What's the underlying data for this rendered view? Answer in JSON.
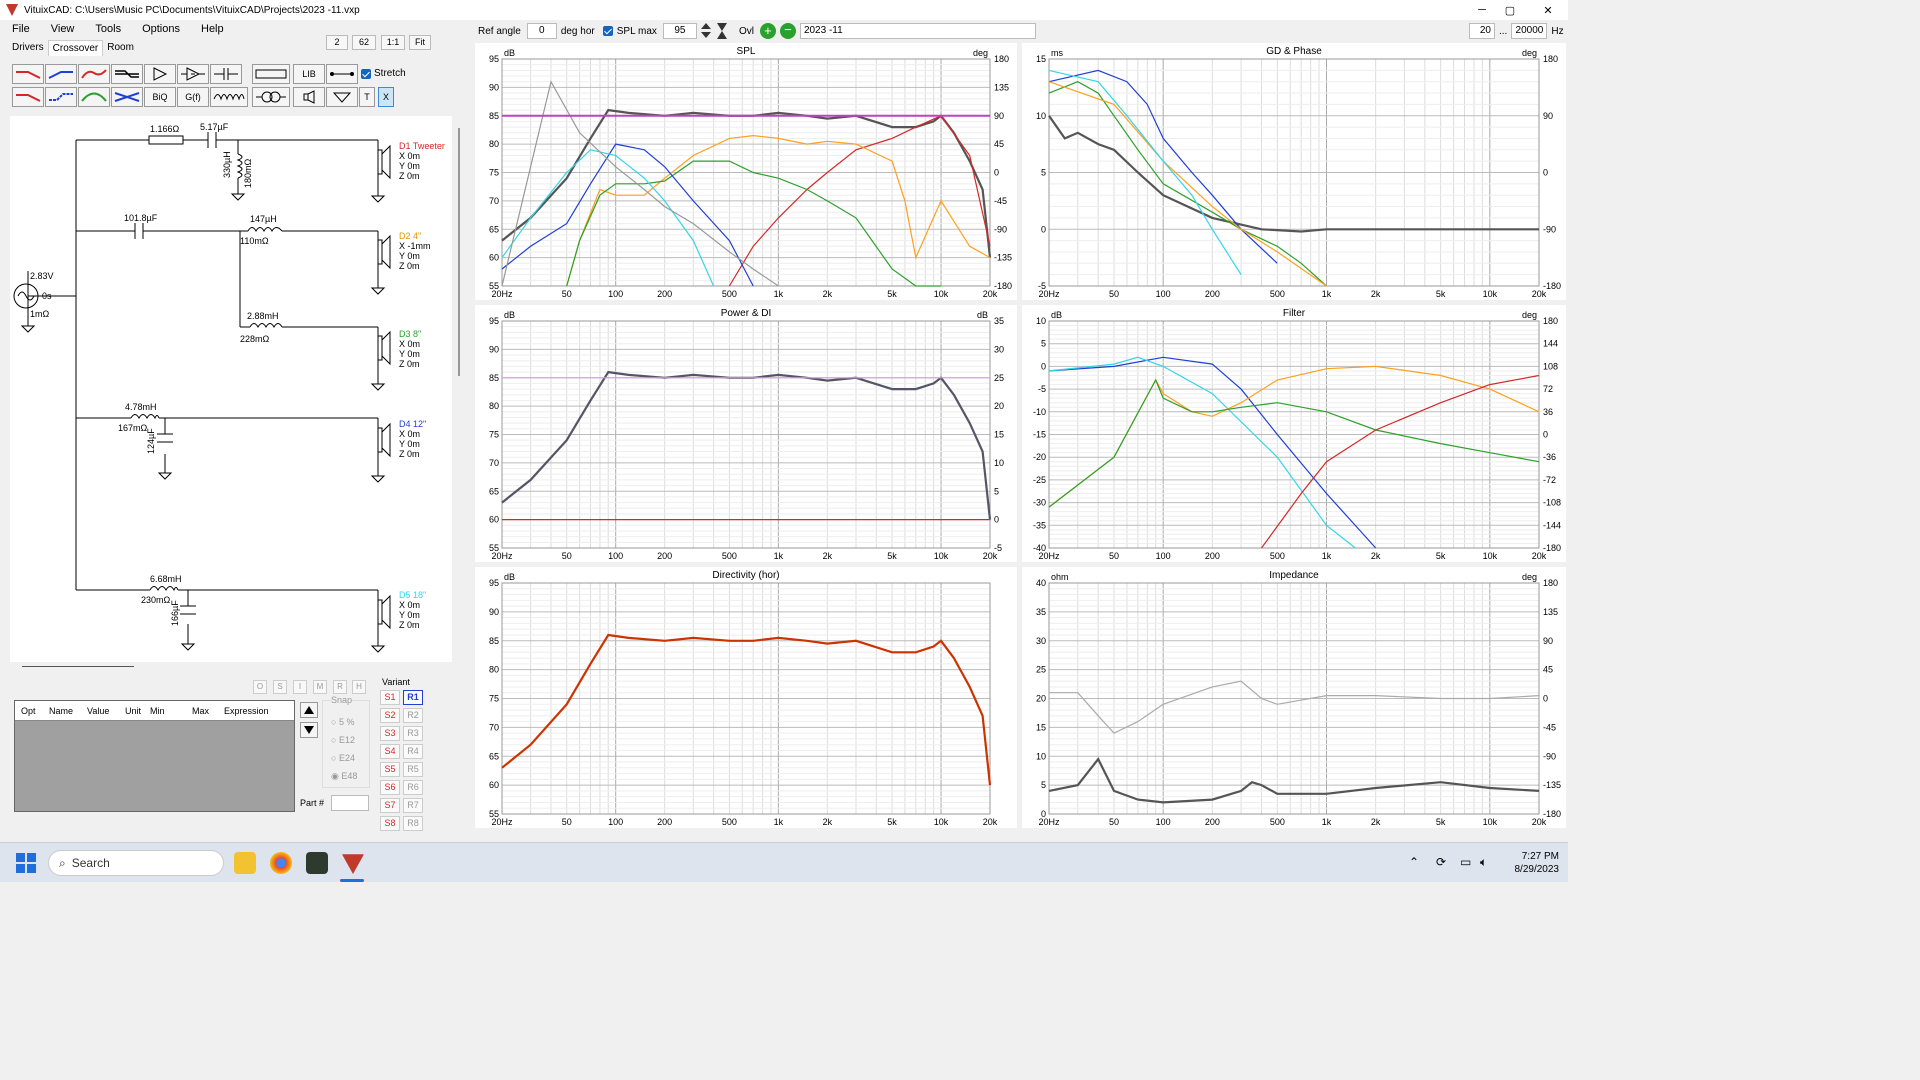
{
  "window": {
    "title": "VituixCAD: C:\\Users\\Music PC\\Documents\\VituixCAD\\Projects\\2023 -11.vxp",
    "controls": [
      "─",
      "▢",
      "✕"
    ]
  },
  "menu": [
    "File",
    "View",
    "Tools",
    "Options",
    "Help"
  ],
  "tabs": [
    "Drivers",
    "Crossover",
    "Room"
  ],
  "zoom": [
    "2",
    "62",
    "1:1",
    "Fit"
  ],
  "toolbar": {
    "row2": [
      "BiQ",
      "G(f)"
    ],
    "lib": "LIB",
    "t": "T",
    "x": "X",
    "stretch": "Stretch"
  },
  "topbar": {
    "ref_angle_label": "Ref angle",
    "ref_angle": "0",
    "deg_hor": "deg hor",
    "spl_max_label": "SPL max",
    "spl_max": "95",
    "ovl": "Ovl",
    "variant_name": "2023 -11",
    "f_min": "20",
    "dots": "...",
    "f_max": "20000",
    "hz": "Hz"
  },
  "schematic": {
    "source": {
      "v": "2.83V",
      "t": "0s",
      "r": "1mΩ"
    },
    "d1": {
      "name": "D1 Tweeter",
      "x": "X 0m",
      "y": "Y 0m",
      "z": "Z 0m",
      "r1": "1.166Ω",
      "c1": "5.17µF",
      "l1": "330µH",
      "r2": "180mΩ"
    },
    "d2": {
      "name": "D2 4\"",
      "x": "X -1mm",
      "y": "Y 0m",
      "z": "Z 0m",
      "c": "101.8µF",
      "l": "147µH",
      "r": "110mΩ"
    },
    "d3": {
      "name": "D3 8\"",
      "x": "X 0m",
      "y": "Y 0m",
      "z": "Z 0m",
      "l": "2.88mH",
      "r": "228mΩ"
    },
    "d4": {
      "name": "D4 12\"",
      "x": "X 0m",
      "y": "Y 0m",
      "z": "Z 0m",
      "l": "4.78mH",
      "r": "167mΩ",
      "c": "124µF"
    },
    "d5": {
      "name": "D5 18\"",
      "x": "X 0m",
      "y": "Y 0m",
      "z": "Z 0m",
      "l": "6.68mH",
      "r": "230mΩ",
      "c": "166µF"
    }
  },
  "opt": {
    "headers": [
      "Opt",
      "Name",
      "Value",
      "Unit",
      "Min",
      "Max",
      "Expression"
    ],
    "letters": [
      "O",
      "S",
      "I",
      "M",
      "R",
      "H"
    ],
    "snap_title": "Snap",
    "snap": [
      "5 %",
      "E12",
      "E24",
      "E48"
    ],
    "part_label": "Part #"
  },
  "variants": {
    "title": "Variant",
    "s": [
      "S1",
      "S2",
      "S3",
      "S4",
      "S5",
      "S6",
      "S7",
      "S8"
    ],
    "r": [
      "R1",
      "R2",
      "R3",
      "R4",
      "R5",
      "R6",
      "R7",
      "R8"
    ]
  },
  "freq_ticks": [
    "20Hz",
    "50",
    "100",
    "200",
    "500",
    "1k",
    "2k",
    "5k",
    "10k",
    "20k"
  ],
  "charts": {
    "spl": {
      "title": "SPL",
      "lunit": "dB",
      "runit": "deg",
      "left": [
        "95",
        "90",
        "85",
        "80",
        "75",
        "70",
        "65",
        "60",
        "55"
      ],
      "right": [
        "180",
        "135",
        "90",
        "45",
        "0",
        "-45",
        "-90",
        "-135",
        "-180"
      ]
    },
    "gd": {
      "title": "GD & Phase",
      "lunit": "ms",
      "runit": "deg",
      "left": [
        "15",
        "10",
        "5",
        "0",
        "-5"
      ],
      "right": [
        "180",
        "90",
        "0",
        "-90",
        "-180"
      ]
    },
    "power": {
      "title": "Power & DI",
      "lunit": "dB",
      "runit": "dB",
      "left": [
        "95",
        "90",
        "85",
        "80",
        "75",
        "70",
        "65",
        "60",
        "55"
      ],
      "right": [
        "35",
        "30",
        "25",
        "20",
        "15",
        "10",
        "5",
        "0",
        "-5"
      ]
    },
    "filter": {
      "title": "Filter",
      "lunit": "dB",
      "runit": "deg",
      "left": [
        "10",
        "5",
        "0",
        "-5",
        "-10",
        "-15",
        "-20",
        "-25",
        "-30",
        "-35",
        "-40"
      ],
      "right": [
        "180",
        "144",
        "108",
        "72",
        "36",
        "0",
        "-36",
        "-72",
        "-108",
        "-144",
        "-180"
      ]
    },
    "dir": {
      "title": "Directivity (hor)",
      "lunit": "dB",
      "runit": "",
      "left": [
        "95",
        "90",
        "85",
        "80",
        "75",
        "70",
        "65",
        "60",
        "55"
      ],
      "right": []
    },
    "imp": {
      "title": "Impedance",
      "lunit": "ohm",
      "runit": "deg",
      "left": [
        "40",
        "35",
        "30",
        "25",
        "20",
        "15",
        "10",
        "5",
        "0"
      ],
      "right": [
        "180",
        "135",
        "90",
        "45",
        "0",
        "-45",
        "-90",
        "-135",
        "-180"
      ]
    }
  },
  "chart_data": [
    {
      "type": "line",
      "title": "SPL",
      "ylabel": "dB",
      "xlim": [
        20,
        20000
      ],
      "ylim": [
        55,
        95
      ],
      "xscale": "log",
      "grid": true,
      "series": [
        {
          "color": "#555555",
          "x": [
            20,
            30,
            50,
            70,
            90,
            120,
            200,
            300,
            500,
            700,
            1000,
            1500,
            2000,
            3000,
            5000,
            7000,
            9000,
            10000,
            12000,
            15000,
            18000,
            20000
          ],
          "values": [
            63,
            67,
            74,
            81,
            86,
            85.5,
            85,
            85.5,
            85,
            85,
            85.5,
            85,
            84.5,
            85,
            83,
            83,
            84,
            85,
            82,
            77,
            72,
            60
          ]
        },
        {
          "color": "#d62728",
          "x": [
            500,
            700,
            1000,
            1500,
            2000,
            3000,
            5000,
            7000,
            10000,
            15000,
            20000
          ],
          "values": [
            55,
            62,
            67,
            72,
            75,
            79,
            81,
            83,
            85,
            78,
            62
          ]
        },
        {
          "color": "#ff9f1c",
          "x": [
            50,
            60,
            80,
            100,
            150,
            200,
            300,
            500,
            700,
            1000,
            1500,
            2000,
            3000,
            5000,
            6000,
            7000,
            10000,
            15000,
            20000
          ],
          "values": [
            55,
            63,
            72,
            71,
            71,
            74,
            78,
            81,
            81.5,
            81,
            80,
            80.5,
            80,
            77,
            70,
            60,
            70,
            62,
            60
          ]
        },
        {
          "color": "#2ca02c",
          "x": [
            50,
            60,
            80,
            100,
            150,
            200,
            300,
            500,
            700,
            1000,
            1500,
            2000,
            3000,
            5000,
            7000,
            10000
          ],
          "values": [
            55,
            63,
            71,
            73,
            73,
            73.5,
            77,
            77,
            75,
            74,
            72,
            70,
            67,
            58,
            52,
            55
          ]
        },
        {
          "color": "#1f3fd6",
          "x": [
            20,
            30,
            50,
            70,
            100,
            150,
            200,
            300,
            500,
            700
          ],
          "values": [
            58,
            62,
            66,
            73,
            80,
            79,
            76,
            70,
            63,
            55
          ]
        },
        {
          "color": "#33d6e6",
          "x": [
            20,
            30,
            50,
            70,
            100,
            150,
            200,
            300,
            400
          ],
          "values": [
            60,
            67,
            75,
            79,
            78,
            74,
            70,
            63,
            55
          ]
        },
        {
          "color": "#999999",
          "x": [
            20,
            40,
            60,
            100,
            150,
            200,
            300,
            500,
            700,
            1000
          ],
          "values": [
            55,
            91,
            82,
            76,
            72,
            69,
            66,
            61,
            58,
            55
          ]
        }
      ]
    },
    {
      "type": "line",
      "title": "Power & DI",
      "ylabel": "dB",
      "xlim": [
        20,
        20000
      ],
      "ylim": [
        55,
        95
      ],
      "xscale": "log",
      "grid": true,
      "series": [
        {
          "color": "#555566",
          "x": [
            20,
            30,
            50,
            70,
            90,
            120,
            200,
            300,
            500,
            700,
            1000,
            1500,
            2000,
            3000,
            5000,
            7000,
            9000,
            10000,
            12000,
            15000,
            18000,
            20000
          ],
          "values": [
            63,
            67,
            74,
            81,
            86,
            85.5,
            85,
            85.5,
            85,
            85,
            85.5,
            85,
            84.5,
            85,
            83,
            83,
            84,
            85,
            82,
            77,
            72,
            60
          ]
        },
        {
          "color": "#d6a0d6",
          "x": [
            20,
            20000
          ],
          "values": [
            85,
            85
          ]
        },
        {
          "color": "#d62728",
          "x": [
            20,
            20000
          ],
          "values": [
            60,
            60
          ]
        }
      ]
    },
    {
      "type": "line",
      "title": "Directivity (hor)",
      "ylabel": "dB",
      "xlim": [
        20,
        20000
      ],
      "ylim": [
        55,
        95
      ],
      "xscale": "log",
      "grid": true,
      "series": [
        {
          "color": "#cc3300",
          "x": [
            20,
            30,
            50,
            70,
            90,
            120,
            200,
            300,
            500,
            700,
            1000,
            1500,
            2000,
            3000,
            5000,
            7000,
            9000,
            10000,
            12000,
            15000,
            18000,
            20000
          ],
          "values": [
            63,
            67,
            74,
            81,
            86,
            85.5,
            85,
            85.5,
            85,
            85,
            85.5,
            85,
            84.5,
            85,
            83,
            83,
            84,
            85,
            82,
            77,
            72,
            60
          ]
        }
      ]
    },
    {
      "type": "line",
      "title": "Impedance",
      "ylabel": "ohm",
      "xlim": [
        20,
        20000
      ],
      "ylim": [
        0,
        40
      ],
      "xscale": "log",
      "grid": true,
      "series": [
        {
          "color": "#555555",
          "x": [
            20,
            30,
            40,
            50,
            70,
            100,
            200,
            300,
            350,
            400,
            500,
            1000,
            2000,
            5000,
            10000,
            20000
          ],
          "values": [
            4,
            5,
            9.5,
            4,
            2.5,
            2,
            2.5,
            4,
            5.5,
            5,
            3.5,
            3.5,
            4.5,
            5.5,
            4.5,
            4
          ]
        },
        {
          "color": "#aaaaaa",
          "x": [
            20,
            30,
            40,
            50,
            70,
            100,
            200,
            300,
            400,
            500,
            1000,
            2000,
            5000,
            10000,
            20000
          ],
          "values": [
            21,
            21,
            17,
            14,
            16,
            19,
            22,
            23,
            20,
            19,
            20.5,
            20.5,
            20,
            20,
            20.5
          ]
        }
      ]
    },
    {
      "type": "line",
      "title": "Filter",
      "ylabel": "dB",
      "xlim": [
        20,
        20000
      ],
      "ylim": [
        -40,
        10
      ],
      "xscale": "log",
      "grid": true,
      "series": [
        {
          "color": "#1f3fd6",
          "x": [
            20,
            50,
            100,
            200,
            300,
            500,
            1000,
            2000
          ],
          "values": [
            -1,
            0,
            2,
            0.5,
            -5,
            -15,
            -28,
            -40
          ]
        },
        {
          "color": "#33d6e6",
          "x": [
            20,
            50,
            70,
            100,
            200,
            500,
            1000,
            1500
          ],
          "values": [
            -1,
            0.5,
            2,
            0,
            -6,
            -20,
            -35,
            -40
          ]
        },
        {
          "color": "#ff9f1c",
          "x": [
            20,
            50,
            90,
            100,
            150,
            200,
            300,
            500,
            1000,
            2000,
            5000,
            10000,
            20000
          ],
          "values": [
            -31,
            -20,
            -3,
            -6,
            -10,
            -11,
            -8,
            -3,
            -0.5,
            0,
            -2,
            -5,
            -10
          ]
        },
        {
          "color": "#2ca02c",
          "x": [
            20,
            50,
            90,
            100,
            150,
            200,
            300,
            500,
            1000,
            2000,
            5000,
            10000,
            20000
          ],
          "values": [
            -31,
            -20,
            -3,
            -7,
            -10,
            -10,
            -9,
            -8,
            -10,
            -14,
            -17,
            -19,
            -21
          ]
        },
        {
          "color": "#d62728",
          "x": [
            400,
            700,
            1000,
            2000,
            5000,
            10000,
            20000
          ],
          "values": [
            -40,
            -28,
            -21,
            -14,
            -8,
            -4,
            -2
          ]
        }
      ]
    },
    {
      "type": "line",
      "title": "GD & Phase",
      "ylabel": "ms",
      "xlim": [
        20,
        20000
      ],
      "ylim": [
        -5,
        15
      ],
      "xscale": "log",
      "grid": true,
      "series": [
        {
          "color": "#555555",
          "x": [
            20,
            25,
            30,
            40,
            50,
            70,
            100,
            200,
            400,
            700,
            1000,
            2000,
            5000,
            20000
          ],
          "values": [
            10,
            8,
            8.5,
            7.5,
            7,
            5,
            3,
            1,
            0,
            -0.2,
            0,
            0,
            0,
            0
          ]
        },
        {
          "color": "#2ca02c",
          "x": [
            20,
            30,
            40,
            50,
            70,
            100,
            200,
            300,
            500,
            700,
            1000
          ],
          "values": [
            12,
            13,
            12,
            10,
            7,
            4,
            1.5,
            0,
            -1.5,
            -3,
            -5
          ]
        },
        {
          "color": "#1f3fd6",
          "x": [
            20,
            40,
            60,
            80,
            100,
            150,
            200,
            300,
            500
          ],
          "values": [
            13,
            14,
            13,
            11,
            8,
            5,
            3,
            0,
            -3
          ]
        },
        {
          "color": "#ff9f1c",
          "x": [
            20,
            50,
            100,
            200,
            300,
            500,
            1000
          ],
          "values": [
            13,
            11,
            6,
            2,
            0,
            -2,
            -5
          ]
        },
        {
          "color": "#33d6e6",
          "x": [
            20,
            40,
            60,
            100,
            150,
            200,
            300
          ],
          "values": [
            14,
            13,
            10,
            6,
            3,
            0,
            -4
          ]
        }
      ]
    }
  ]
}
